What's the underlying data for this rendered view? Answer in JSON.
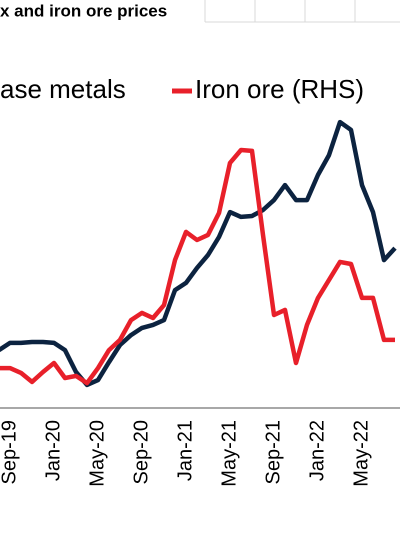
{
  "chart_data": {
    "type": "line",
    "title": "x and iron ore prices",
    "categories": [
      null,
      "Sep-19",
      null,
      null,
      null,
      "Jan-20",
      null,
      null,
      null,
      "May-20",
      null,
      null,
      null,
      "Sep-20",
      null,
      null,
      null,
      "Jan-21",
      null,
      null,
      null,
      "May-21",
      null,
      null,
      null,
      "Sep-21",
      null,
      null,
      null,
      "Jan-22",
      null,
      null,
      null,
      "May-22",
      null,
      null,
      null
    ],
    "ylim": [
      0,
      100
    ],
    "series": [
      {
        "name": "ase metals",
        "color": "#0c2340",
        "values": [
          19.3,
          21.7,
          21.7,
          22,
          22,
          21.7,
          19.3,
          12,
          7.7,
          9.3,
          15.3,
          21,
          24.3,
          26.7,
          27.7,
          29.3,
          39.3,
          41.7,
          46.7,
          51,
          57,
          65.3,
          63.7,
          64,
          66,
          69.3,
          74.3,
          69.3,
          69.3,
          77.7,
          84.3,
          95.3,
          92.7,
          74.3,
          65.3,
          49.3,
          53.3
        ]
      },
      {
        "name": "Iron ore (RHS)",
        "color": "#e8202a",
        "values": [
          13.3,
          13.3,
          11.7,
          8.7,
          12,
          15,
          10,
          10.7,
          8.3,
          13.3,
          19.3,
          22.7,
          29.3,
          31.7,
          30,
          34.3,
          49.3,
          58.7,
          56,
          57.7,
          65,
          81.7,
          86,
          85.7,
          57.7,
          31,
          32.7,
          15,
          27.7,
          36.7,
          42.7,
          48.7,
          48,
          36.7,
          36.7,
          22.7,
          22.7
        ]
      }
    ]
  }
}
